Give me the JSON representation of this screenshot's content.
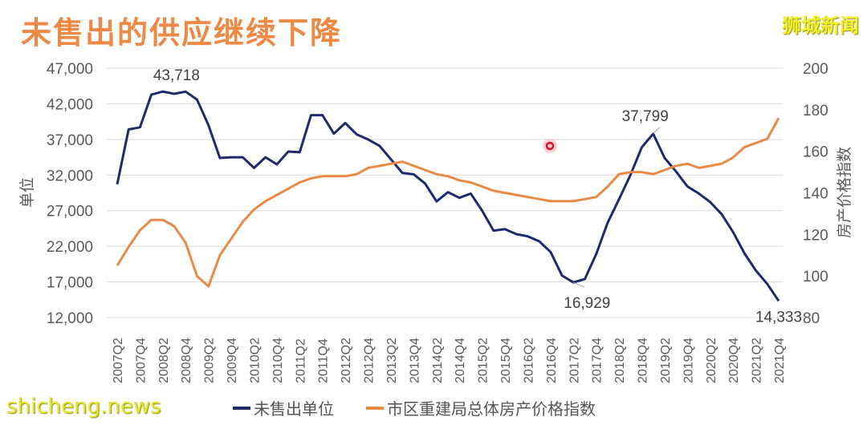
{
  "title": "未售出的供应继续下降",
  "brand": "狮城新闻",
  "watermark": "shicheng.news",
  "colors": {
    "unsold": "#1f2a6b",
    "ppi": "#e88a45",
    "title": "#ec8a45",
    "brand": "#f2ef2a",
    "grid": "#d9d9d9",
    "axis_text": "#595959"
  },
  "legend": [
    {
      "label": "未售出单位",
      "color": "#1f2a6b"
    },
    {
      "label": "市区重建局总体房产价格指数",
      "color": "#e88a45"
    }
  ],
  "chart_data": {
    "type": "line",
    "title": "未售出的供应继续下降",
    "xlabel": "",
    "ylabel": "单位",
    "y2label": "房产价格指数",
    "ylim": [
      12000,
      47000
    ],
    "y2lim": [
      80,
      200
    ],
    "yticks": [
      "47,000",
      "42,000",
      "37,000",
      "32,000",
      "27,000",
      "22,000",
      "17,000",
      "12,000"
    ],
    "y2ticks": [
      "200",
      "180",
      "160",
      "140",
      "120",
      "100",
      "80"
    ],
    "grid": true,
    "legend_position": "bottom",
    "x": [
      "2007Q2",
      "2007Q3",
      "2007Q4",
      "2008Q1",
      "2008Q2",
      "2008Q3",
      "2008Q4",
      "2009Q1",
      "2009Q2",
      "2009Q3",
      "2009Q4",
      "2010Q1",
      "2010Q2",
      "2010Q3",
      "2010Q4",
      "2011Q1",
      "2011Q2",
      "2011Q3",
      "2011Q4",
      "2012Q1",
      "2012Q2",
      "2012Q3",
      "2012Q4",
      "2013Q1",
      "2013Q2",
      "2013Q3",
      "2013Q4",
      "2014Q1",
      "2014Q2",
      "2014Q3",
      "2014Q4",
      "2015Q1",
      "2015Q2",
      "2015Q3",
      "2015Q4",
      "2016Q1",
      "2016Q2",
      "2016Q3",
      "2016Q4",
      "2017Q1",
      "2017Q2",
      "2017Q3",
      "2017Q4",
      "2018Q1",
      "2018Q2",
      "2018Q3",
      "2018Q4",
      "2019Q1",
      "2019Q2",
      "2019Q3",
      "2019Q4",
      "2020Q1",
      "2020Q2",
      "2020Q3",
      "2020Q4",
      "2021Q1",
      "2021Q2",
      "2021Q3",
      "2021Q4"
    ],
    "xtick_labels": [
      "2007Q2",
      "2007Q4",
      "2008Q2",
      "2008Q4",
      "2009Q2",
      "2009Q4",
      "2010Q2",
      "2010Q4",
      "2011Q2",
      "2011Q4",
      "2012Q2",
      "2012Q4",
      "2013Q2",
      "2013Q4",
      "2014Q2",
      "2014Q4",
      "2015Q2",
      "2015Q4",
      "2016Q2",
      "2016Q4",
      "2017Q2",
      "2017Q4",
      "2018Q2",
      "2018Q4",
      "2019Q2",
      "2019Q4",
      "2020Q2",
      "2020Q4",
      "2021Q2",
      "2021Q4"
    ],
    "series": [
      {
        "name": "未售出单位",
        "axis": "left",
        "color": "#1f2a6b",
        "values": [
          30700,
          38400,
          38700,
          43300,
          43718,
          43400,
          43700,
          42600,
          39000,
          34400,
          34500,
          34500,
          33000,
          34500,
          33500,
          35300,
          35200,
          40400,
          40400,
          37800,
          39300,
          37700,
          37000,
          36100,
          34200,
          32300,
          32100,
          30800,
          28300,
          29600,
          28800,
          29400,
          27000,
          24200,
          24400,
          23700,
          23400,
          22700,
          21200,
          17900,
          16929,
          17400,
          20900,
          25300,
          28600,
          32000,
          35900,
          37799,
          34400,
          32500,
          30400,
          29400,
          28200,
          26500,
          24000,
          21000,
          18600,
          16700,
          14333
        ]
      },
      {
        "name": "市区重建局总体房产价格指数",
        "axis": "right",
        "color": "#e88a45",
        "values": [
          105,
          114,
          122,
          127,
          127,
          124,
          116,
          100,
          95,
          110,
          118,
          126,
          132,
          136,
          139,
          142,
          145,
          147,
          148,
          148,
          148,
          149,
          152,
          153,
          154,
          155,
          153,
          151,
          149,
          148,
          146,
          145,
          143,
          141,
          140,
          139,
          138,
          137,
          136,
          136,
          136,
          137,
          138,
          143,
          149,
          150,
          150,
          149,
          151,
          153,
          154,
          152,
          153,
          154,
          157,
          162,
          164,
          166,
          176
        ]
      }
    ],
    "annotations": [
      {
        "text": "43,718",
        "x": "2008Q2",
        "series": "未售出单位"
      },
      {
        "text": "16,929",
        "x": "2017Q2",
        "series": "未售出单位"
      },
      {
        "text": "37,799",
        "x": "2019Q1",
        "series": "未售出单位"
      },
      {
        "text": "14,333",
        "x": "2021Q4",
        "series": "未售出单位"
      }
    ]
  }
}
